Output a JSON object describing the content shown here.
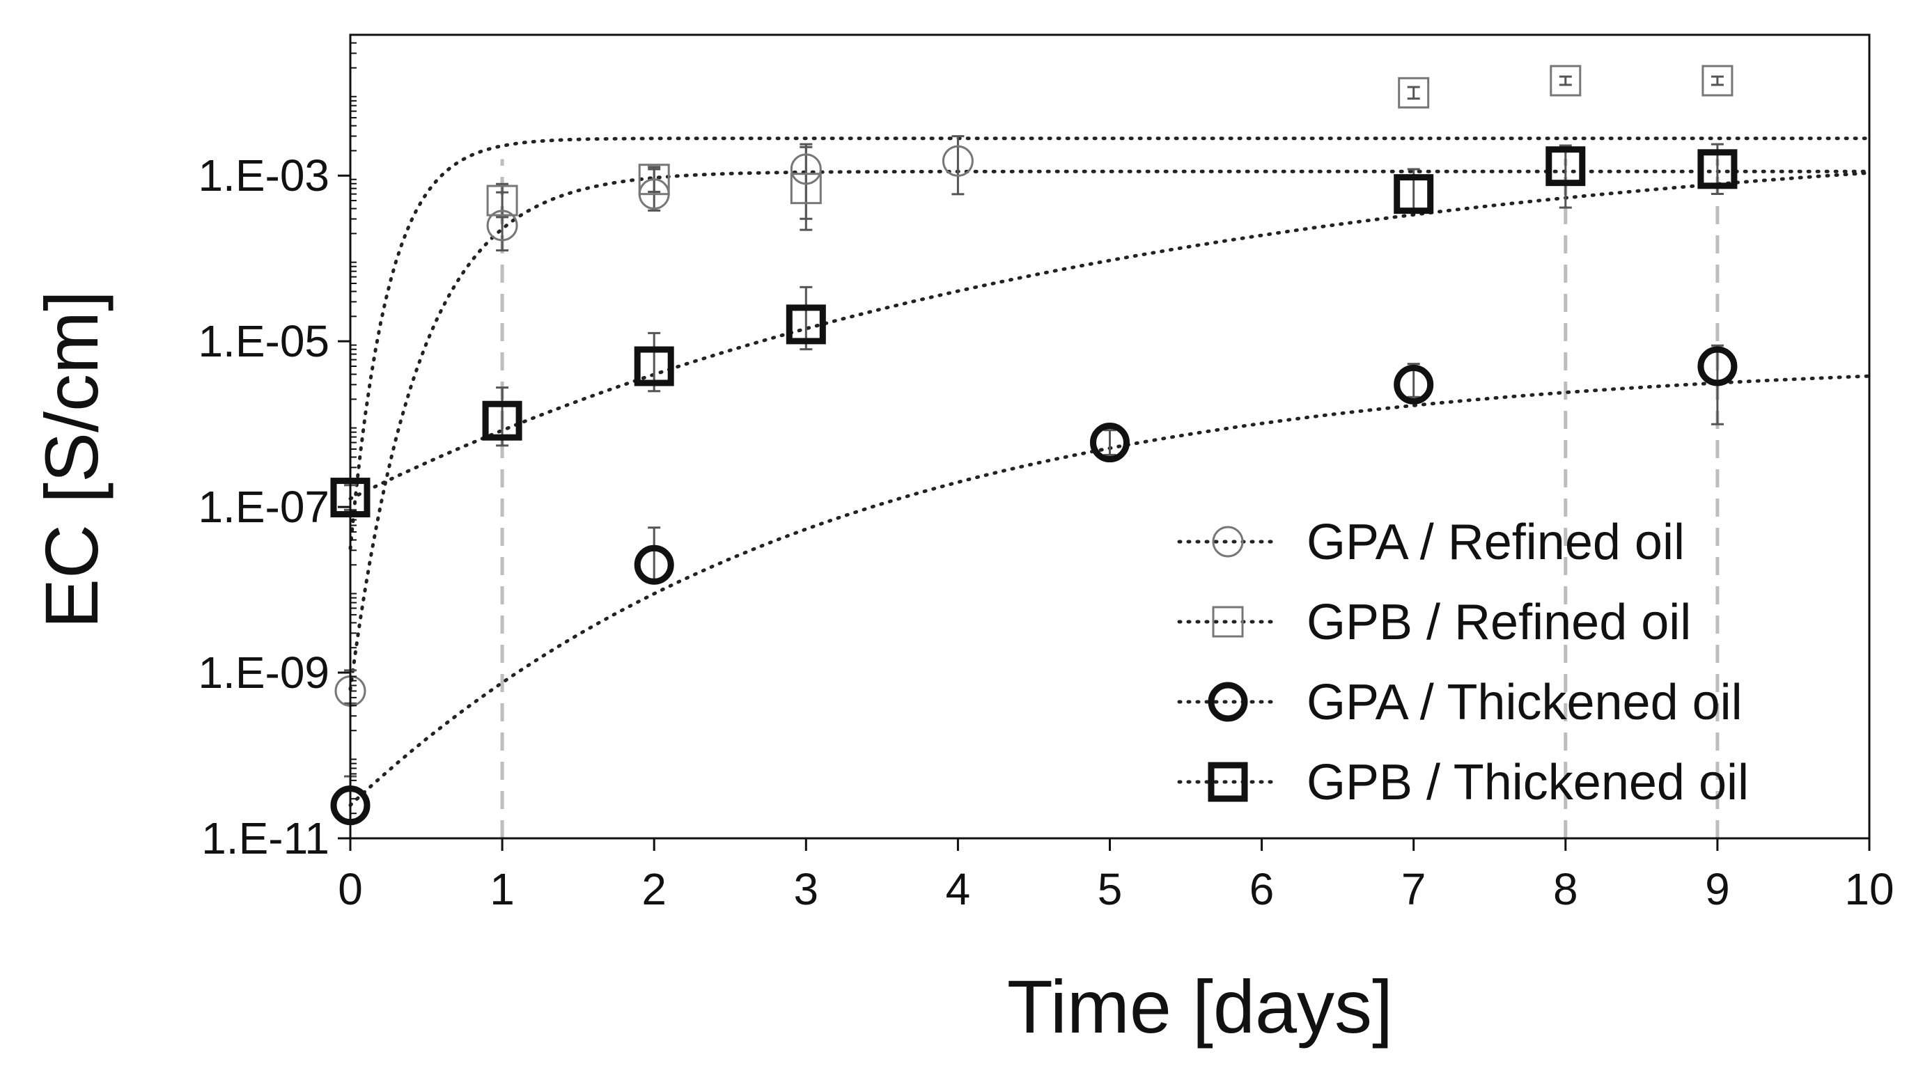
{
  "chart_data": {
    "type": "scatter",
    "title": "",
    "xlabel": "Time [days]",
    "ylabel": "EC [S/cm]",
    "xlim": [
      0,
      10
    ],
    "ylim_log10": [
      -11,
      -1.3
    ],
    "x_ticks": [
      {
        "value": 0,
        "label": "0"
      },
      {
        "value": 1,
        "label": "1"
      },
      {
        "value": 2,
        "label": "2"
      },
      {
        "value": 3,
        "label": "3"
      },
      {
        "value": 4,
        "label": "4"
      },
      {
        "value": 5,
        "label": "5"
      },
      {
        "value": 6,
        "label": "6"
      },
      {
        "value": 7,
        "label": "7"
      },
      {
        "value": 8,
        "label": "8"
      },
      {
        "value": 9,
        "label": "9"
      },
      {
        "value": 10,
        "label": "10"
      }
    ],
    "y_ticks": [
      {
        "log10": -3,
        "label": "1.E-03"
      },
      {
        "log10": -5,
        "label": "1.E-05"
      },
      {
        "log10": -7,
        "label": "1.E-07"
      },
      {
        "log10": -9,
        "label": "1.E-09"
      },
      {
        "log10": -11,
        "label": "1.E-11"
      }
    ],
    "reference_lines_x": [
      1,
      8,
      9
    ],
    "grid": false,
    "legend_position": "bottom-right",
    "series": [
      {
        "name": "GPA / Refined oil",
        "marker": "circle",
        "weight": "thin",
        "color": "#777777",
        "points": [
          {
            "x": 0,
            "y": 6e-10,
            "err_log10": [
              -0.15,
              0.25
            ]
          },
          {
            "x": 1,
            "y": 0.00025,
            "err_log10": [
              -0.3,
              0.4
            ]
          },
          {
            "x": 2,
            "y": 0.0006,
            "err_log10": [
              -0.2,
              0.3
            ]
          },
          {
            "x": 3,
            "y": 0.0012,
            "err_log10": [
              -0.6,
              0.3
            ]
          },
          {
            "x": 4,
            "y": 0.0015,
            "err_log10": [
              -0.4,
              0.3
            ]
          }
        ],
        "fit_log10": {
          "y0": -9.2,
          "yinf": -2.95,
          "k": 2.2
        }
      },
      {
        "name": "GPB / Refined oil",
        "marker": "square",
        "weight": "thin",
        "color": "#777777",
        "points": [
          {
            "x": 1,
            "y": 0.0005,
            "err_log10": [
              -0.2,
              0.2
            ]
          },
          {
            "x": 2,
            "y": 0.0009,
            "err_log10": [
              -0.15,
              0.15
            ]
          },
          {
            "x": 3,
            "y": 0.0007,
            "err_log10": [
              -0.5,
              0.5
            ]
          },
          {
            "x": 7,
            "y": 0.01,
            "err_log10": [
              -0.07,
              0.07
            ]
          },
          {
            "x": 8,
            "y": 0.014,
            "err_log10": [
              -0.05,
              0.05
            ]
          },
          {
            "x": 9,
            "y": 0.014,
            "err_log10": [
              -0.05,
              0.05
            ]
          }
        ],
        "fit_log10": {
          "y0": -7.5,
          "yinf": -2.55,
          "k": 4.0
        }
      },
      {
        "name": "GPA / Thickened oil",
        "marker": "circle",
        "weight": "thick",
        "color": "#111111",
        "points": [
          {
            "x": 0,
            "y": 2.5e-11,
            "err_log10": [
              -0.2,
              0.35
            ]
          },
          {
            "x": 2,
            "y": 2e-08,
            "err_log10": [
              -0.2,
              0.45
            ]
          },
          {
            "x": 5,
            "y": 6e-07,
            "err_log10": [
              -0.15,
              0.15
            ]
          },
          {
            "x": 7,
            "y": 3e-06,
            "err_log10": [
              -0.15,
              0.25
            ]
          },
          {
            "x": 9,
            "y": 5e-06,
            "err_log10": [
              -0.7,
              0.25
            ]
          }
        ],
        "fit_log10": {
          "y0": -10.6,
          "yinf": -5.2,
          "k": 0.32
        }
      },
      {
        "name": "GPB / Thickened oil",
        "marker": "square",
        "weight": "thick",
        "color": "#111111",
        "points": [
          {
            "x": 0,
            "y": 1.3e-07,
            "err_log10": [
              -0.15,
              0.15
            ]
          },
          {
            "x": 1,
            "y": 1.1e-06,
            "err_log10": [
              -0.3,
              0.4
            ]
          },
          {
            "x": 2,
            "y": 5e-06,
            "err_log10": [
              -0.3,
              0.4
            ]
          },
          {
            "x": 3,
            "y": 1.6e-05,
            "err_log10": [
              -0.3,
              0.45
            ]
          },
          {
            "x": 7,
            "y": 0.0006,
            "err_log10": [
              -0.2,
              0.3
            ]
          },
          {
            "x": 8,
            "y": 0.0013,
            "err_log10": [
              -0.5,
              0.25
            ]
          },
          {
            "x": 9,
            "y": 0.0012,
            "err_log10": [
              -0.3,
              0.3
            ]
          }
        ],
        "fit_log10": {
          "y0": -6.9,
          "yinf": -2.35,
          "k": 0.2
        }
      }
    ]
  }
}
